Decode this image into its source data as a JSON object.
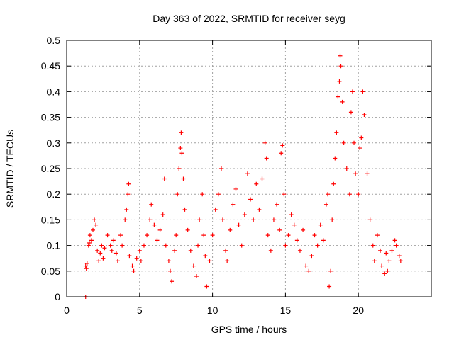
{
  "chart_data": {
    "type": "scatter",
    "title": "Day 363 of 2022, SRMTID for receiver seyg",
    "xlabel": "GPS time / hours",
    "ylabel": "SRMTID / TECUs",
    "xlim": [
      0,
      25
    ],
    "ylim": [
      0,
      0.5
    ],
    "x_ticks": [
      0,
      5,
      10,
      15,
      20
    ],
    "x_tick_labels": [
      "0",
      "5",
      "10",
      "15",
      "20"
    ],
    "y_ticks": [
      0,
      0.05,
      0.1,
      0.15,
      0.2,
      0.25,
      0.3,
      0.35,
      0.4,
      0.45,
      0.5
    ],
    "y_tick_labels": [
      "0",
      "0.05",
      "0.1",
      "0.15",
      "0.2",
      "0.25",
      "0.3",
      "0.35",
      "0.4",
      "0.45",
      "0.5"
    ],
    "grid": true,
    "marker": "+",
    "color": "#ff0000",
    "series": [
      {
        "name": "SRMTID",
        "points": [
          [
            1.3,
            0.0
          ],
          [
            1.3,
            0.06
          ],
          [
            1.35,
            0.055
          ],
          [
            1.4,
            0.065
          ],
          [
            1.5,
            0.1
          ],
          [
            1.55,
            0.105
          ],
          [
            1.6,
            0.12
          ],
          [
            1.7,
            0.11
          ],
          [
            1.8,
            0.13
          ],
          [
            1.9,
            0.15
          ],
          [
            2.0,
            0.14
          ],
          [
            2.1,
            0.09
          ],
          [
            2.2,
            0.07
          ],
          [
            2.3,
            0.085
          ],
          [
            2.4,
            0.1
          ],
          [
            2.5,
            0.075
          ],
          [
            2.6,
            0.095
          ],
          [
            2.8,
            0.12
          ],
          [
            3.0,
            0.1
          ],
          [
            3.1,
            0.09
          ],
          [
            3.2,
            0.11
          ],
          [
            3.4,
            0.085
          ],
          [
            3.5,
            0.07
          ],
          [
            3.7,
            0.12
          ],
          [
            3.8,
            0.1
          ],
          [
            4.0,
            0.15
          ],
          [
            4.1,
            0.17
          ],
          [
            4.2,
            0.2
          ],
          [
            4.25,
            0.22
          ],
          [
            4.3,
            0.08
          ],
          [
            4.5,
            0.06
          ],
          [
            4.6,
            0.05
          ],
          [
            4.8,
            0.075
          ],
          [
            5.0,
            0.09
          ],
          [
            5.1,
            0.07
          ],
          [
            5.3,
            0.1
          ],
          [
            5.5,
            0.12
          ],
          [
            5.7,
            0.15
          ],
          [
            5.8,
            0.18
          ],
          [
            6.0,
            0.14
          ],
          [
            6.2,
            0.11
          ],
          [
            6.4,
            0.13
          ],
          [
            6.6,
            0.16
          ],
          [
            6.7,
            0.23
          ],
          [
            6.8,
            0.1
          ],
          [
            7.0,
            0.07
          ],
          [
            7.1,
            0.05
          ],
          [
            7.2,
            0.03
          ],
          [
            7.4,
            0.09
          ],
          [
            7.5,
            0.12
          ],
          [
            7.6,
            0.2
          ],
          [
            7.7,
            0.25
          ],
          [
            7.8,
            0.29
          ],
          [
            7.85,
            0.32
          ],
          [
            7.9,
            0.28
          ],
          [
            8.0,
            0.23
          ],
          [
            8.1,
            0.17
          ],
          [
            8.3,
            0.13
          ],
          [
            8.5,
            0.09
          ],
          [
            8.7,
            0.06
          ],
          [
            8.9,
            0.04
          ],
          [
            9.0,
            0.1
          ],
          [
            9.1,
            0.15
          ],
          [
            9.3,
            0.2
          ],
          [
            9.4,
            0.12
          ],
          [
            9.5,
            0.08
          ],
          [
            9.6,
            0.02
          ],
          [
            9.8,
            0.07
          ],
          [
            10.0,
            0.12
          ],
          [
            10.2,
            0.17
          ],
          [
            10.4,
            0.2
          ],
          [
            10.6,
            0.25
          ],
          [
            10.7,
            0.15
          ],
          [
            10.9,
            0.09
          ],
          [
            11.0,
            0.07
          ],
          [
            11.2,
            0.13
          ],
          [
            11.4,
            0.18
          ],
          [
            11.6,
            0.21
          ],
          [
            11.8,
            0.14
          ],
          [
            12.0,
            0.1
          ],
          [
            12.2,
            0.16
          ],
          [
            12.4,
            0.24
          ],
          [
            12.6,
            0.19
          ],
          [
            12.8,
            0.15
          ],
          [
            13.0,
            0.22
          ],
          [
            13.2,
            0.17
          ],
          [
            13.4,
            0.23
          ],
          [
            13.6,
            0.3
          ],
          [
            13.7,
            0.27
          ],
          [
            13.8,
            0.12
          ],
          [
            14.0,
            0.09
          ],
          [
            14.2,
            0.15
          ],
          [
            14.4,
            0.18
          ],
          [
            14.6,
            0.13
          ],
          [
            14.7,
            0.28
          ],
          [
            14.8,
            0.295
          ],
          [
            14.9,
            0.2
          ],
          [
            15.0,
            0.1
          ],
          [
            15.2,
            0.12
          ],
          [
            15.4,
            0.16
          ],
          [
            15.6,
            0.14
          ],
          [
            15.8,
            0.11
          ],
          [
            16.0,
            0.09
          ],
          [
            16.2,
            0.13
          ],
          [
            16.4,
            0.06
          ],
          [
            16.6,
            0.05
          ],
          [
            16.8,
            0.08
          ],
          [
            17.0,
            0.12
          ],
          [
            17.2,
            0.1
          ],
          [
            17.4,
            0.14
          ],
          [
            17.6,
            0.11
          ],
          [
            17.8,
            0.18
          ],
          [
            17.9,
            0.2
          ],
          [
            18.0,
            0.02
          ],
          [
            18.1,
            0.05
          ],
          [
            18.2,
            0.15
          ],
          [
            18.3,
            0.22
          ],
          [
            18.4,
            0.27
          ],
          [
            18.5,
            0.32
          ],
          [
            18.6,
            0.39
          ],
          [
            18.7,
            0.42
          ],
          [
            18.75,
            0.47
          ],
          [
            18.8,
            0.45
          ],
          [
            18.9,
            0.38
          ],
          [
            19.0,
            0.3
          ],
          [
            19.2,
            0.25
          ],
          [
            19.4,
            0.2
          ],
          [
            19.5,
            0.36
          ],
          [
            19.6,
            0.4
          ],
          [
            19.7,
            0.3
          ],
          [
            19.8,
            0.24
          ],
          [
            20.0,
            0.2
          ],
          [
            20.1,
            0.29
          ],
          [
            20.2,
            0.31
          ],
          [
            20.3,
            0.4
          ],
          [
            20.4,
            0.355
          ],
          [
            20.6,
            0.24
          ],
          [
            20.8,
            0.15
          ],
          [
            21.0,
            0.1
          ],
          [
            21.1,
            0.07
          ],
          [
            21.3,
            0.12
          ],
          [
            21.5,
            0.09
          ],
          [
            21.6,
            0.06
          ],
          [
            21.8,
            0.045
          ],
          [
            21.9,
            0.085
          ],
          [
            22.0,
            0.05
          ],
          [
            22.1,
            0.07
          ],
          [
            22.3,
            0.09
          ],
          [
            22.5,
            0.11
          ],
          [
            22.6,
            0.1
          ],
          [
            22.8,
            0.08
          ],
          [
            22.9,
            0.07
          ]
        ]
      }
    ]
  }
}
